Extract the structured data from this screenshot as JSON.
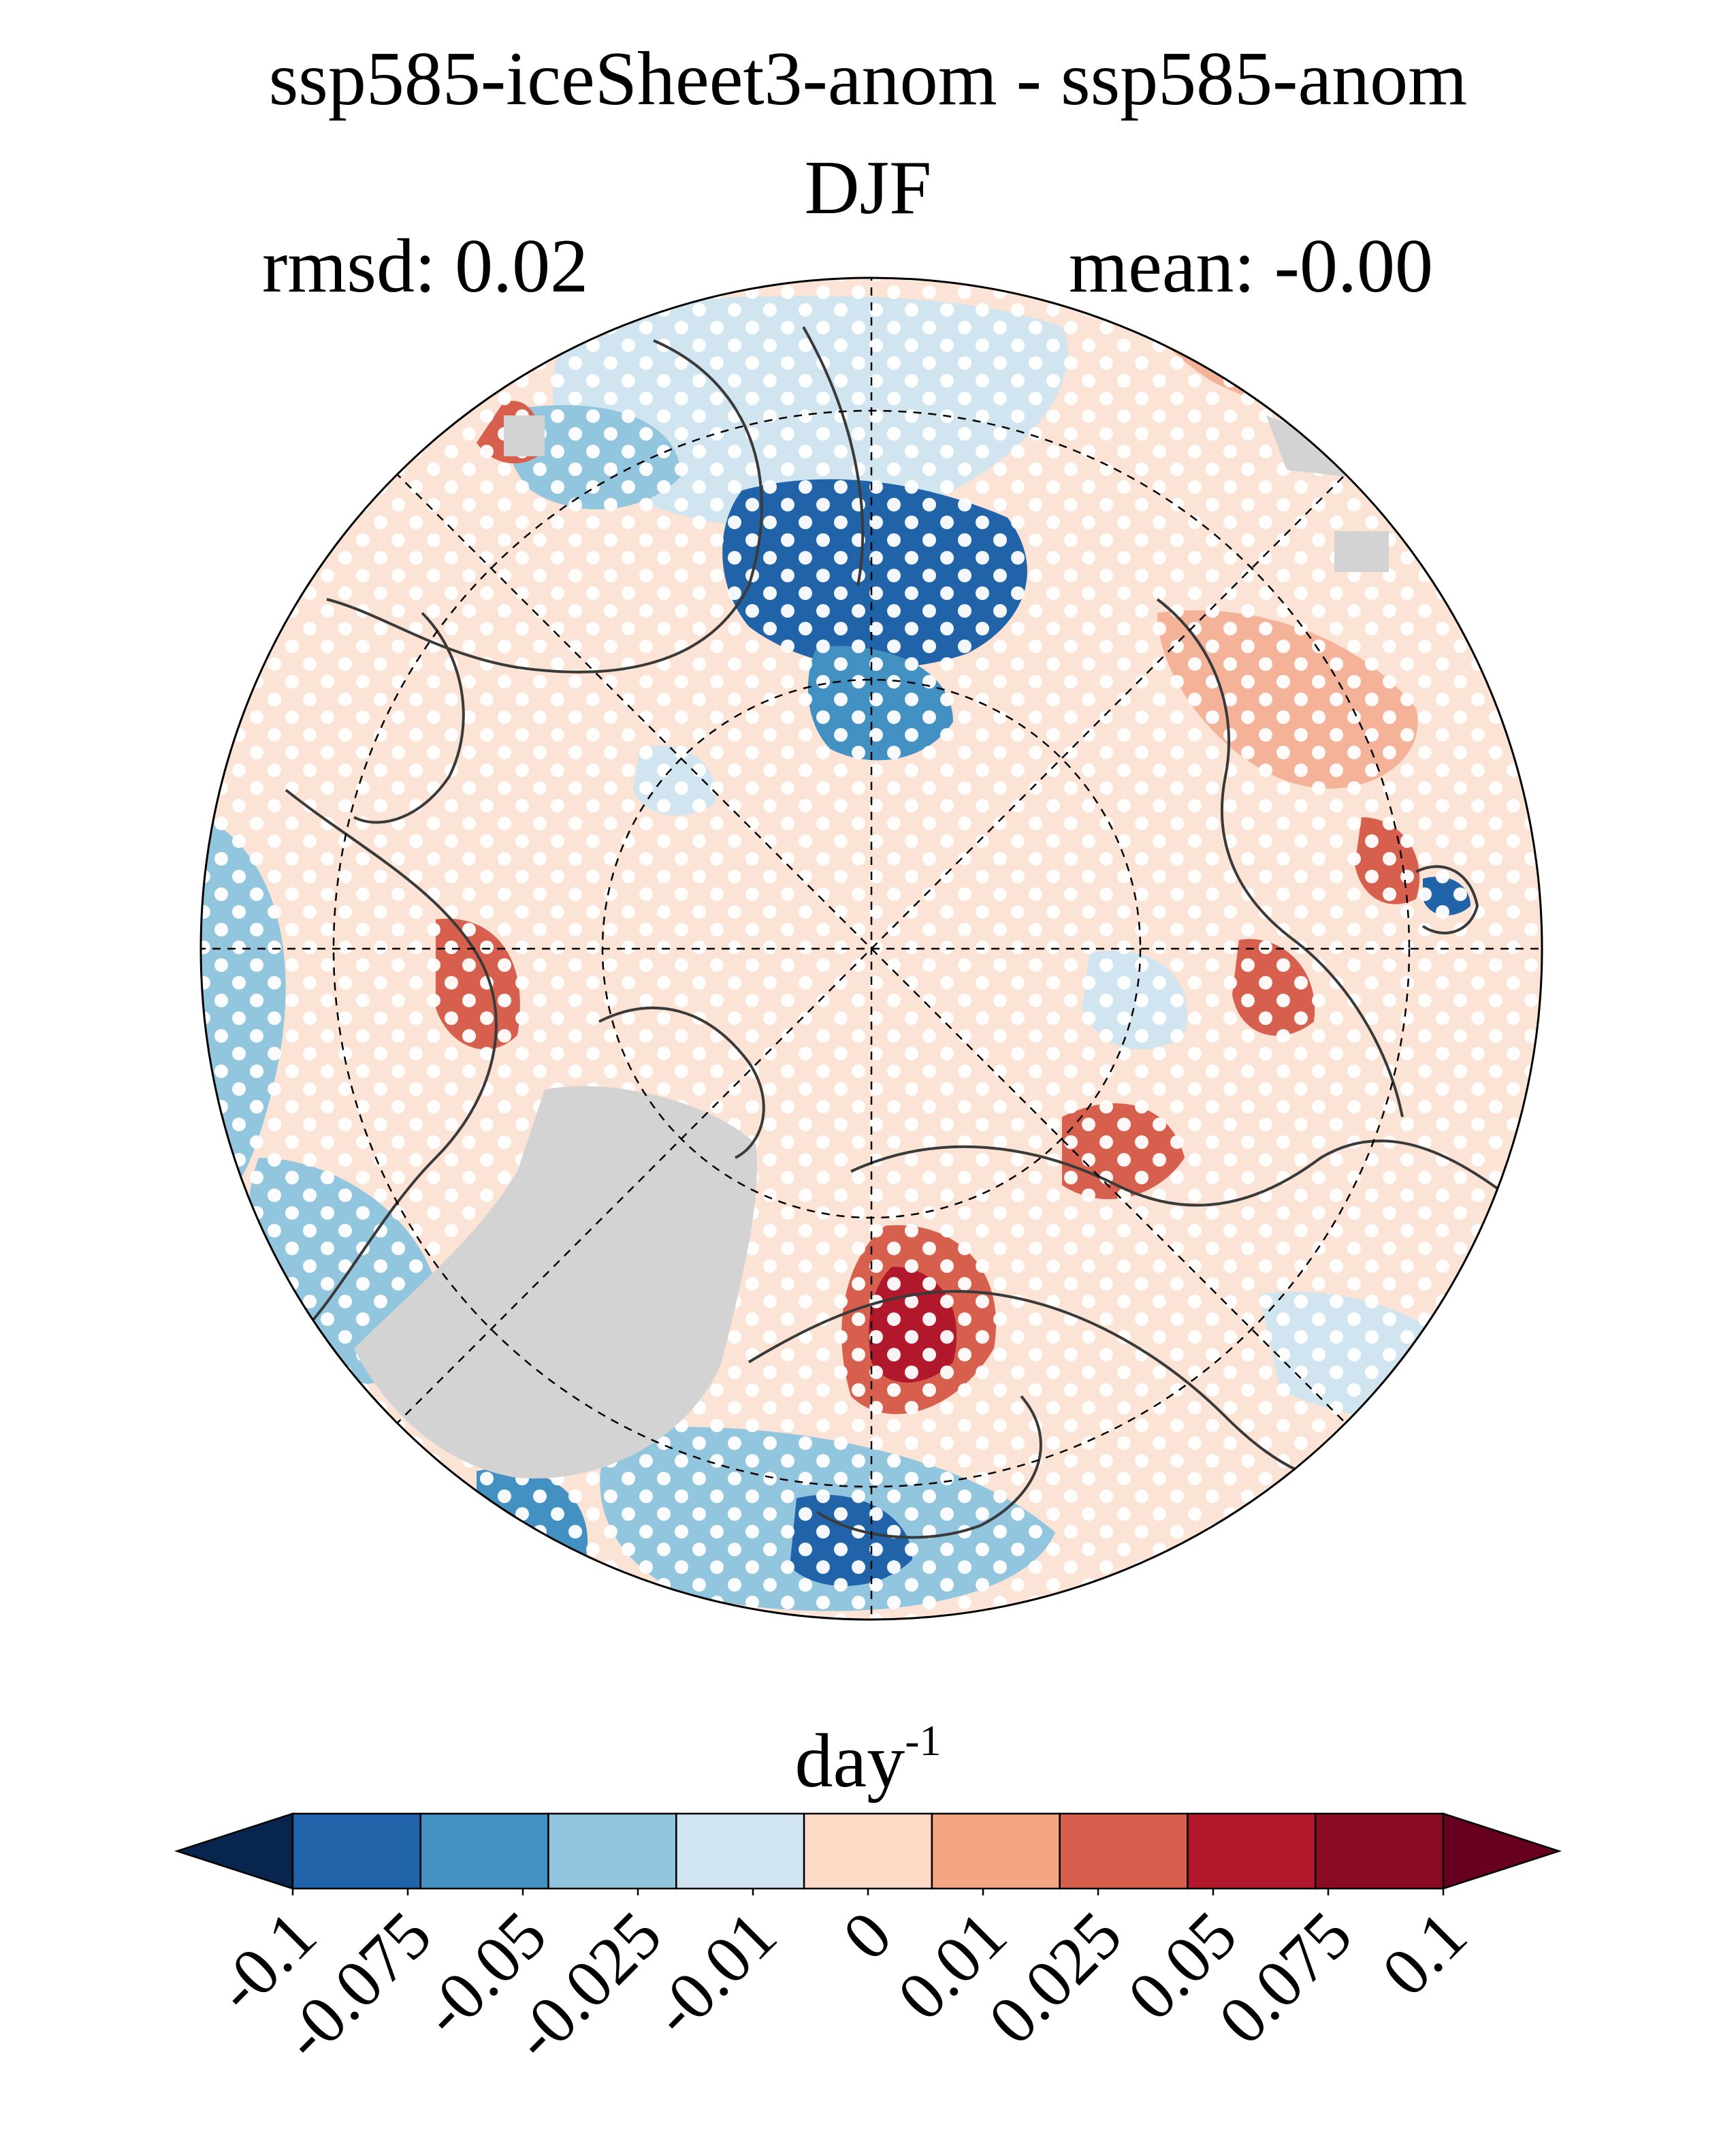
{
  "figure": {
    "title": "ssp585-iceSheet3-anom - ssp585-anom",
    "season": "DJF",
    "rmsd_label": "rmsd: 0.02",
    "mean_label": "mean: -0.00",
    "projection": "north-polar-stereographic",
    "stippling": "white dots",
    "contours": "dark grey lines",
    "masked_region_color": "#d3d3d3"
  },
  "colorbar": {
    "units_base": "day",
    "units_exp": "-1",
    "orientation": "horizontal",
    "extend": "both",
    "ticks": [
      "-0.1",
      "-0.075",
      "-0.05",
      "-0.025",
      "-0.01",
      "0",
      "0.01",
      "0.025",
      "0.05",
      "0.075",
      "0.1"
    ],
    "levels": [
      -0.1,
      -0.075,
      -0.05,
      -0.025,
      -0.01,
      0,
      0.01,
      0.025,
      0.05,
      0.075,
      0.1
    ],
    "colors": [
      "#08254d",
      "#2163a9",
      "#4391c3",
      "#92c5de",
      "#d1e5f0",
      "#fddbc7",
      "#f4a582",
      "#d6604d",
      "#b2182b",
      "#8a0c22",
      "#67001f"
    ]
  }
}
